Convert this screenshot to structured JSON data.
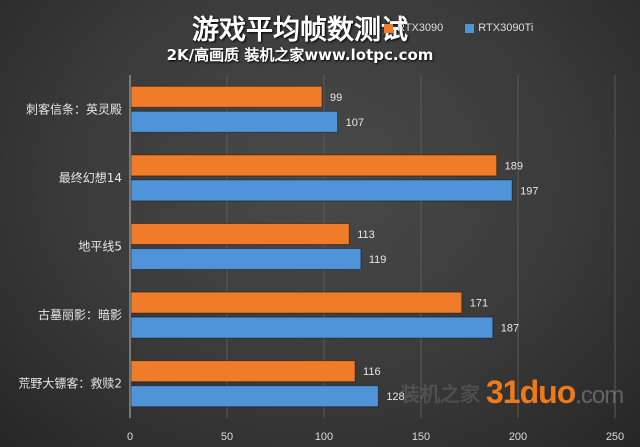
{
  "chart_data": {
    "type": "bar",
    "orientation": "horizontal",
    "title": "游戏平均帧数测试",
    "subtitle": "2K/高画质 装机之家www.lotpc.com",
    "categories": [
      "刺客信条：英灵殿",
      "最终幻想14",
      "地平线5",
      "古墓丽影：暗影",
      "荒野大镖客：救赎2"
    ],
    "series": [
      {
        "name": "RTX3090",
        "color": "#f07c2a",
        "values": [
          99,
          189,
          113,
          171,
          116
        ]
      },
      {
        "name": "RTX3090Ti",
        "color": "#4f94d8",
        "values": [
          107,
          197,
          119,
          187,
          128
        ]
      }
    ],
    "xlim": [
      0,
      250
    ],
    "xticks": [
      0,
      50,
      100,
      150,
      200,
      250
    ],
    "grid": true,
    "legend_position": "top-right"
  },
  "watermark": {
    "brand": "31duo",
    "suffix": ".com",
    "cn": "装机之家"
  }
}
